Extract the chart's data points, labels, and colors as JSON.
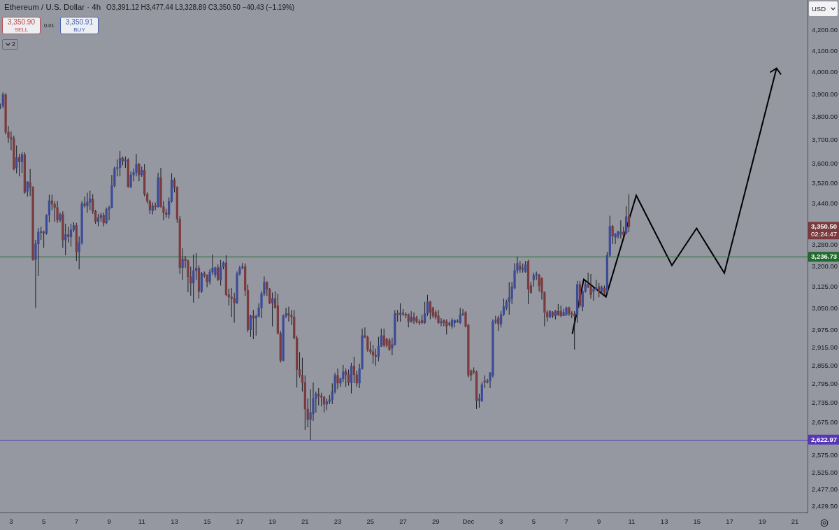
{
  "chart_data": {
    "type": "candlestick",
    "title": "Ethereum / U.S. Dollar · 4h",
    "subtitle": "O3,391.12 H3,477.44 L3,328.89 C3,350.50 −40.43 (−1.19%)",
    "x": [
      "--11-02T08:00",
      "--11-02T12:00",
      "--11-02T16:00",
      "--11-02T20:00",
      "--11-03T00:00",
      "--11-03T04:00",
      "--11-03T08:00",
      "--11-03T12:00",
      "--11-03T16:00",
      "--11-03T20:00",
      "--11-04T00:00",
      "--11-04T04:00",
      "--11-04T08:00",
      "--11-04T12:00",
      "--11-04T16:00",
      "--11-04T20:00",
      "--11-05T00:00",
      "--11-05T04:00",
      "--11-05T08:00",
      "--11-05T12:00",
      "--11-05T16:00",
      "--11-05T20:00",
      "--11-06T00:00",
      "--11-06T04:00",
      "--11-06T08:00",
      "--11-06T12:00",
      "--11-06T16:00",
      "--11-06T20:00",
      "--11-07T00:00",
      "--11-07T04:00",
      "--11-07T08:00",
      "--11-07T12:00",
      "--11-07T16:00",
      "--11-07T20:00",
      "--11-08T00:00",
      "--11-08T04:00",
      "--11-08T08:00",
      "--11-08T12:00",
      "--11-08T16:00",
      "--11-08T20:00",
      "--11-09T00:00",
      "--11-09T04:00",
      "--11-09T08:00",
      "--11-09T12:00",
      "--11-09T16:00",
      "--11-09T20:00",
      "--11-10T00:00",
      "--11-10T04:00",
      "--11-10T08:00",
      "--11-10T12:00",
      "--11-10T16:00",
      "--11-10T20:00",
      "--11-11T00:00",
      "--11-11T04:00",
      "--11-11T08:00",
      "--11-11T12:00",
      "--11-11T16:00",
      "--11-11T20:00",
      "--11-12T00:00",
      "--11-12T04:00",
      "--11-12T08:00",
      "--11-12T12:00",
      "--11-12T16:00",
      "--11-12T20:00",
      "--11-13T00:00",
      "--11-13T04:00",
      "--11-13T08:00",
      "--11-13T12:00",
      "--11-13T16:00",
      "--11-13T20:00",
      "--11-14T00:00",
      "--11-14T04:00",
      "--11-14T08:00",
      "--11-14T12:00",
      "--11-14T16:00",
      "--11-14T20:00",
      "--11-15T00:00",
      "--11-15T04:00",
      "--11-15T08:00",
      "--11-15T12:00",
      "--11-15T16:00",
      "--11-15T20:00",
      "--11-16T00:00",
      "--11-16T04:00",
      "--11-16T08:00",
      "--11-16T12:00",
      "--11-16T16:00",
      "--11-16T20:00",
      "--11-17T00:00",
      "--11-17T04:00",
      "--11-17T08:00",
      "--11-17T12:00",
      "--11-17T16:00",
      "--11-17T20:00",
      "--11-18T00:00",
      "--11-18T04:00",
      "--11-18T08:00",
      "--11-18T12:00",
      "--11-18T16:00",
      "--11-18T20:00",
      "--11-19T00:00",
      "--11-19T04:00",
      "--11-19T08:00",
      "--11-19T12:00",
      "--11-19T16:00",
      "--11-19T20:00",
      "--11-20T00:00",
      "--11-20T04:00",
      "--11-20T08:00",
      "--11-20T12:00",
      "--11-20T16:00",
      "--11-20T20:00",
      "--11-21T00:00",
      "--11-21T04:00",
      "--11-21T08:00",
      "--11-21T12:00",
      "--11-21T16:00",
      "--11-21T20:00",
      "--11-22T00:00",
      "--11-22T04:00",
      "--11-22T08:00",
      "--11-22T12:00",
      "--11-22T16:00",
      "--11-22T20:00",
      "--11-23T00:00",
      "--11-23T04:00",
      "--11-23T08:00",
      "--11-23T12:00",
      "--11-23T16:00",
      "--11-23T20:00",
      "--11-24T00:00",
      "--11-24T04:00",
      "--11-24T08:00",
      "--11-24T12:00",
      "--11-24T16:00",
      "--11-24T20:00",
      "--11-25T00:00",
      "--11-25T04:00",
      "--11-25T08:00",
      "--11-25T12:00",
      "--11-25T16:00",
      "--11-25T20:00",
      "--11-26T00:00",
      "--11-26T04:00",
      "--11-26T08:00",
      "--11-26T12:00",
      "--11-26T16:00",
      "--11-26T20:00",
      "--11-27T00:00",
      "--11-27T04:00",
      "--11-27T08:00",
      "--11-27T12:00",
      "--11-27T16:00",
      "--11-27T20:00",
      "--11-28T00:00",
      "--11-28T04:00",
      "--11-28T08:00",
      "--11-28T12:00",
      "--11-28T16:00",
      "--11-28T20:00",
      "--11-29T00:00",
      "--11-29T04:00",
      "--11-29T08:00",
      "--11-29T12:00",
      "--11-29T16:00",
      "--11-29T20:00",
      "--11-30T00:00",
      "--11-30T04:00",
      "--11-30T08:00",
      "--11-30T12:00",
      "--11-30T16:00",
      "--11-30T20:00",
      "--12-01T00:00",
      "--12-01T04:00",
      "--12-01T08:00",
      "--12-01T12:00",
      "--12-01T16:00",
      "--12-01T20:00",
      "--12-02T00:00",
      "--12-02T04:00",
      "--12-02T08:00",
      "--12-02T12:00",
      "--12-02T16:00",
      "--12-02T20:00",
      "--12-03T00:00",
      "--12-03T04:00",
      "--12-03T08:00",
      "--12-03T12:00",
      "--12-03T16:00",
      "--12-03T20:00",
      "--12-04T00:00",
      "--12-04T04:00",
      "--12-04T08:00",
      "--12-04T12:00",
      "--12-04T16:00",
      "--12-04T20:00",
      "--12-05T00:00",
      "--12-05T04:00",
      "--12-05T08:00",
      "--12-05T12:00",
      "--12-05T16:00",
      "--12-05T20:00",
      "--12-06T00:00",
      "--12-06T04:00",
      "--12-06T08:00",
      "--12-06T12:00",
      "--12-06T16:00",
      "--12-06T20:00",
      "--12-07T00:00",
      "--12-07T04:00",
      "--12-07T08:00",
      "--12-07T12:00",
      "--12-07T16:00",
      "--12-07T20:00",
      "--12-08T00:00",
      "--12-08T04:00",
      "--12-08T08:00",
      "--12-08T12:00",
      "--12-08T16:00",
      "--12-08T20:00",
      "--12-09T00:00",
      "--12-09T04:00",
      "--12-09T08:00",
      "--12-09T12:00",
      "--12-09T16:00",
      "--12-09T20:00",
      "--12-10T00:00",
      "--12-10T04:00",
      "--12-10T08:00",
      "--12-10T12:00",
      "--12-10T16:00",
      "--12-10T20:00"
    ],
    "ohlc": [
      [
        3845,
        3860,
        3835,
        3850
      ],
      [
        3850,
        3910,
        3840,
        3900
      ],
      [
        3900,
        3905,
        3725,
        3735
      ],
      [
        3735,
        3762,
        3690,
        3712
      ],
      [
        3712,
        3738,
        3658,
        3705
      ],
      [
        3708,
        3720,
        3575,
        3580
      ],
      [
        3585,
        3678,
        3562,
        3628
      ],
      [
        3628,
        3643,
        3550,
        3610
      ],
      [
        3610,
        3650,
        3565,
        3640
      ],
      [
        3640,
        3650,
        3480,
        3485
      ],
      [
        3490,
        3530,
        3468,
        3528
      ],
      [
        3525,
        3580,
        3471,
        3505
      ],
      [
        3505,
        3510,
        3222,
        3226
      ],
      [
        3226,
        3300,
        3052,
        3285
      ],
      [
        3285,
        3345,
        3165,
        3330
      ],
      [
        3328,
        3350,
        3300,
        3332
      ],
      [
        3330,
        3335,
        3270,
        3325
      ],
      [
        3325,
        3398,
        3320,
        3395
      ],
      [
        3395,
        3476,
        3367,
        3452
      ],
      [
        3452,
        3476,
        3415,
        3438
      ],
      [
        3438,
        3450,
        3370,
        3425
      ],
      [
        3425,
        3450,
        3365,
        3376
      ],
      [
        3376,
        3405,
        3368,
        3398
      ],
      [
        3398,
        3410,
        3270,
        3300
      ],
      [
        3300,
        3362,
        3242,
        3320
      ],
      [
        3320,
        3350,
        3290,
        3312
      ],
      [
        3312,
        3362,
        3275,
        3338
      ],
      [
        3338,
        3368,
        3330,
        3355
      ],
      [
        3355,
        3365,
        3221,
        3255
      ],
      [
        3255,
        3313,
        3190,
        3290
      ],
      [
        3290,
        3450,
        3282,
        3440
      ],
      [
        3440,
        3468,
        3425,
        3432
      ],
      [
        3432,
        3484,
        3405,
        3447
      ],
      [
        3446,
        3492,
        3415,
        3460
      ],
      [
        3458,
        3478,
        3400,
        3410
      ],
      [
        3410,
        3416,
        3362,
        3370
      ],
      [
        3370,
        3400,
        3352,
        3385
      ],
      [
        3385,
        3405,
        3370,
        3395
      ],
      [
        3395,
        3405,
        3352,
        3365
      ],
      [
        3365,
        3425,
        3360,
        3418
      ],
      [
        3418,
        3432,
        3375,
        3425
      ],
      [
        3425,
        3556,
        3422,
        3512
      ],
      [
        3512,
        3590,
        3505,
        3582
      ],
      [
        3582,
        3620,
        3550,
        3586
      ],
      [
        3586,
        3655,
        3550,
        3625
      ],
      [
        3625,
        3632,
        3595,
        3612
      ],
      [
        3612,
        3632,
        3585,
        3618
      ],
      [
        3618,
        3625,
        3504,
        3508
      ],
      [
        3508,
        3570,
        3502,
        3556
      ],
      [
        3556,
        3582,
        3530,
        3565
      ],
      [
        3565,
        3643,
        3550,
        3600
      ],
      [
        3600,
        3605,
        3530,
        3556
      ],
      [
        3556,
        3590,
        3548,
        3575
      ],
      [
        3575,
        3600,
        3470,
        3478
      ],
      [
        3478,
        3485,
        3440,
        3450
      ],
      [
        3450,
        3456,
        3400,
        3416
      ],
      [
        3412,
        3445,
        3398,
        3432
      ],
      [
        3432,
        3445,
        3415,
        3428
      ],
      [
        3428,
        3565,
        3425,
        3545
      ],
      [
        3545,
        3585,
        3425,
        3428
      ],
      [
        3428,
        3450,
        3375,
        3405
      ],
      [
        3405,
        3420,
        3385,
        3398
      ],
      [
        3398,
        3465,
        3382,
        3450
      ],
      [
        3450,
        3563,
        3445,
        3535
      ],
      [
        3535,
        3545,
        3485,
        3505
      ],
      [
        3505,
        3510,
        3365,
        3380
      ],
      [
        3380,
        3392,
        3173,
        3196
      ],
      [
        3196,
        3268,
        3152,
        3229
      ],
      [
        3229,
        3240,
        3196,
        3222
      ],
      [
        3222,
        3226,
        3107,
        3163
      ],
      [
        3163,
        3200,
        3095,
        3140
      ],
      [
        3140,
        3245,
        3070,
        3185
      ],
      [
        3185,
        3250,
        3152,
        3195
      ],
      [
        3195,
        3205,
        3085,
        3110
      ],
      [
        3110,
        3180,
        3105,
        3175
      ],
      [
        3175,
        3182,
        3160,
        3168
      ],
      [
        3168,
        3172,
        3125,
        3145
      ],
      [
        3145,
        3190,
        3135,
        3180
      ],
      [
        3180,
        3245,
        3170,
        3195
      ],
      [
        3170,
        3200,
        3160,
        3196
      ],
      [
        3196,
        3208,
        3148,
        3152
      ],
      [
        3152,
        3225,
        3131,
        3199
      ],
      [
        3199,
        3220,
        3190,
        3214
      ],
      [
        3214,
        3242,
        3094,
        3098
      ],
      [
        3098,
        3120,
        3060,
        3090
      ],
      [
        3090,
        3122,
        3020,
        3085
      ],
      [
        3085,
        3105,
        3000,
        3070
      ],
      [
        3070,
        3182,
        3065,
        3173
      ],
      [
        3173,
        3203,
        3168,
        3195
      ],
      [
        3195,
        3213,
        3190,
        3200
      ],
      [
        3200,
        3212,
        3094,
        3114
      ],
      [
        3114,
        3135,
        2968,
        2976
      ],
      [
        2976,
        3028,
        2952,
        3024
      ],
      [
        3024,
        3045,
        2944,
        3016
      ],
      [
        3016,
        3028,
        2956,
        3022
      ],
      [
        3022,
        3068,
        3020,
        3052
      ],
      [
        3052,
        3110,
        3016,
        3102
      ],
      [
        3102,
        3164,
        3094,
        3143
      ],
      [
        3143,
        3147,
        3094,
        3118
      ],
      [
        3118,
        3122,
        3065,
        3069
      ],
      [
        3069,
        3106,
        2988,
        3085
      ],
      [
        3085,
        3110,
        3050,
        3052
      ],
      [
        3060,
        3102,
        2960,
        2964
      ],
      [
        2964,
        2972,
        2866,
        2873
      ],
      [
        2873,
        3028,
        2870,
        3024
      ],
      [
        3024,
        3052,
        3016,
        3032
      ],
      [
        3032,
        3056,
        3004,
        3026
      ],
      [
        3026,
        3044,
        2992,
        3020
      ],
      [
        3020,
        3044,
        2944,
        2948
      ],
      [
        2948,
        2956,
        2785,
        2843
      ],
      [
        2843,
        2900,
        2817,
        2824
      ],
      [
        2824,
        2882,
        2772,
        2801
      ],
      [
        2801,
        2824,
        2652,
        2717
      ],
      [
        2717,
        2750,
        2660,
        2684
      ],
      [
        2684,
        2779,
        2622,
        2706
      ],
      [
        2702,
        2801,
        2680,
        2750
      ],
      [
        2750,
        2772,
        2706,
        2764
      ],
      [
        2764,
        2783,
        2728,
        2758
      ],
      [
        2758,
        2768,
        2725,
        2754
      ],
      [
        2754,
        2758,
        2706,
        2732
      ],
      [
        2732,
        2750,
        2713,
        2740
      ],
      [
        2740,
        2761,
        2732,
        2746
      ],
      [
        2746,
        2798,
        2732,
        2772
      ],
      [
        2772,
        2832,
        2765,
        2824
      ],
      [
        2824,
        2846,
        2780,
        2799
      ],
      [
        2799,
        2817,
        2787,
        2813
      ],
      [
        2813,
        2858,
        2802,
        2836
      ],
      [
        2836,
        2846,
        2787,
        2826
      ],
      [
        2826,
        2843,
        2791,
        2800
      ],
      [
        2800,
        2865,
        2766,
        2854
      ],
      [
        2854,
        2885,
        2799,
        2826
      ],
      [
        2826,
        2839,
        2787,
        2799
      ],
      [
        2799,
        2862,
        2783,
        2846
      ],
      [
        2846,
        2980,
        2843,
        2956
      ],
      [
        2956,
        2984,
        2948,
        2950
      ],
      [
        2950,
        2956,
        2902,
        2909
      ],
      [
        2909,
        2936,
        2893,
        2902
      ],
      [
        2902,
        2924,
        2862,
        2890
      ],
      [
        2890,
        2912,
        2855,
        2886
      ],
      [
        2886,
        2952,
        2870,
        2920
      ],
      [
        2920,
        2980,
        2918,
        2956
      ],
      [
        2956,
        2980,
        2918,
        2924
      ],
      [
        2944,
        2948,
        2916,
        2924
      ],
      [
        2940,
        2948,
        2905,
        2909
      ],
      [
        2914,
        2948,
        2890,
        2926
      ],
      [
        2926,
        3044,
        2922,
        3032
      ],
      [
        3032,
        3044,
        3004,
        3028
      ],
      [
        3028,
        3068,
        3004,
        3034
      ],
      [
        3034,
        3048,
        3024,
        3030
      ],
      [
        3030,
        3036,
        3016,
        3026
      ],
      [
        3028,
        3032,
        2984,
        3004
      ],
      [
        3004,
        3040,
        3000,
        3020
      ],
      [
        3020,
        3036,
        2996,
        3008
      ],
      [
        3016,
        3024,
        2998,
        3004
      ],
      [
        3004,
        3012,
        2992,
        3000
      ],
      [
        3008,
        3028,
        2996,
        3000
      ],
      [
        3000,
        3073,
        2996,
        3032
      ],
      [
        3032,
        3098,
        3024,
        3073
      ],
      [
        3073,
        3077,
        3012,
        3036
      ],
      [
        3052,
        3056,
        3016,
        3024
      ],
      [
        3036,
        3044,
        3012,
        3020
      ],
      [
        3024,
        3044,
        2996,
        3000
      ],
      [
        3000,
        3016,
        2988,
        3004
      ],
      [
        3008,
        3012,
        2988,
        3000
      ],
      [
        3004,
        3012,
        2960,
        2988
      ],
      [
        2998,
        3004,
        2988,
        2994
      ],
      [
        2988,
        3016,
        2980,
        3008
      ],
      [
        3000,
        3012,
        2984,
        3008
      ],
      [
        3006,
        3012,
        3000,
        3004
      ],
      [
        3000,
        3052,
        2996,
        3028
      ],
      [
        3028,
        3048,
        3024,
        3032
      ],
      [
        3036,
        3040,
        2984,
        2988
      ],
      [
        2992,
        2996,
        2817,
        2824
      ],
      [
        2839,
        2843,
        2806,
        2824
      ],
      [
        2839,
        2850,
        2828,
        2835
      ],
      [
        2835,
        2839,
        2717,
        2743
      ],
      [
        2743,
        2765,
        2721,
        2750
      ],
      [
        2743,
        2802,
        2739,
        2794
      ],
      [
        2806,
        2824,
        2783,
        2802
      ],
      [
        2802,
        2813,
        2798,
        2806
      ],
      [
        2806,
        2835,
        2783,
        2832
      ],
      [
        2824,
        3012,
        2817,
        3004
      ],
      [
        3004,
        3024,
        2996,
        3008
      ],
      [
        3016,
        3024,
        2972,
        2996
      ],
      [
        2996,
        3040,
        2984,
        3028
      ],
      [
        3028,
        3085,
        3024,
        3056
      ],
      [
        3052,
        3081,
        3044,
        3073
      ],
      [
        3073,
        3144,
        3028,
        3089
      ],
      [
        3085,
        3144,
        3065,
        3127
      ],
      [
        3122,
        3212,
        3118,
        3186
      ],
      [
        3186,
        3237,
        3174,
        3212
      ],
      [
        3203,
        3220,
        3178,
        3190
      ],
      [
        3190,
        3212,
        3178,
        3195
      ],
      [
        3182,
        3220,
        3178,
        3207
      ],
      [
        3220,
        3225,
        3065,
        3118
      ],
      [
        3131,
        3144,
        3102,
        3106
      ],
      [
        3152,
        3178,
        3127,
        3169
      ],
      [
        3169,
        3182,
        3152,
        3173
      ],
      [
        3169,
        3173,
        3110,
        3131
      ],
      [
        3157,
        3161,
        3081,
        3106
      ],
      [
        3106,
        3110,
        2988,
        3036
      ],
      [
        3036,
        3044,
        3004,
        3020
      ],
      [
        3020,
        3044,
        3016,
        3040
      ],
      [
        3036,
        3040,
        3016,
        3024
      ],
      [
        3024,
        3044,
        3012,
        3040
      ],
      [
        3040,
        3065,
        3024,
        3028
      ],
      [
        3040,
        3060,
        3020,
        3024
      ],
      [
        3024,
        3048,
        3024,
        3036
      ],
      [
        3028,
        3056,
        3024,
        3052
      ],
      [
        3052,
        3056,
        3024,
        3032
      ],
      [
        3032,
        3040,
        3016,
        3028
      ],
      [
        3028,
        3040,
        2909,
        3024
      ],
      [
        3028,
        3148,
        3000,
        3135
      ],
      [
        3135,
        3148,
        3052,
        3061
      ],
      [
        3056,
        3114,
        3040,
        3110
      ],
      [
        3110,
        3144,
        3106,
        3135
      ],
      [
        3135,
        3178,
        3122,
        3127
      ],
      [
        3127,
        3173,
        3085,
        3098
      ],
      [
        3110,
        3127,
        3077,
        3118
      ],
      [
        3118,
        3152,
        3114,
        3122
      ],
      [
        3127,
        3140,
        3089,
        3110
      ],
      [
        3110,
        3131,
        3102,
        3125
      ],
      [
        3122,
        3131,
        3098,
        3104
      ],
      [
        3110,
        3255,
        3102,
        3242
      ],
      [
        3242,
        3393,
        3237,
        3352
      ],
      [
        3352,
        3357,
        3284,
        3314
      ],
      [
        3310,
        3326,
        3284,
        3322
      ],
      [
        3314,
        3335,
        3305,
        3331
      ],
      [
        3322,
        3375,
        3305,
        3330
      ],
      [
        3330,
        3350,
        3305,
        3320
      ],
      [
        3326,
        3430,
        3322,
        3389
      ],
      [
        3391.12,
        3477.44,
        3328.89,
        3350.5
      ]
    ],
    "colors": [
      "#3c4b98",
      "#3c4b98",
      "#7a3a3e",
      "#7a3a3e",
      "#7a3a3e",
      "#7a3a3e",
      "#3c4b98",
      "#7a3a3e",
      "#3c4b98",
      "#7a3a3e",
      "#3c4b98",
      "#7a3a3e",
      "#7a3a3e",
      "#3c4b98",
      "#3c4b98",
      "#3c4b98",
      "#7a3a3e",
      "#3c4b98",
      "#3c4b98",
      "#7a3a3e",
      "#7a3a3e",
      "#7a3a3e",
      "#3c4b98",
      "#7a3a3e",
      "#3c4b98",
      "#7a3a3e",
      "#3c4b98",
      "#3c4b98",
      "#7a3a3e",
      "#3c4b98",
      "#3c4b98",
      "#7a3a3e",
      "#3c4b98",
      "#3c4b98",
      "#7a3a3e",
      "#7a3a3e",
      "#3c4b98",
      "#3c4b98",
      "#7a3a3e",
      "#3c4b98",
      "#3c4b98",
      "#3c4b98",
      "#3c4b98",
      "#3c4b98",
      "#3c4b98",
      "#7a3a3e",
      "#3c4b98",
      "#7a3a3e",
      "#3c4b98",
      "#3c4b98",
      "#3c4b98",
      "#7a3a3e",
      "#3c4b98",
      "#7a3a3e",
      "#7a3a3e",
      "#7a3a3e",
      "#3c4b98",
      "#7a3a3e",
      "#3c4b98",
      "#7a3a3e",
      "#7a3a3e",
      "#7a3a3e",
      "#3c4b98",
      "#3c4b98",
      "#7a3a3e",
      "#7a3a3e",
      "#7a3a3e",
      "#3c4b98",
      "#7a3a3e",
      "#7a3a3e",
      "#7a3a3e",
      "#3c4b98",
      "#3c4b98",
      "#7a3a3e",
      "#3c4b98",
      "#7a3a3e",
      "#7a3a3e",
      "#3c4b98",
      "#3c4b98",
      "#3c4b98",
      "#7a3a3e",
      "#3c4b98",
      "#3c4b98",
      "#7a3a3e",
      "#7a3a3e",
      "#7a3a3e",
      "#7a3a3e",
      "#3c4b98",
      "#3c4b98",
      "#3c4b98",
      "#7a3a3e",
      "#7a3a3e",
      "#3c4b98",
      "#7a3a3e",
      "#3c4b98",
      "#3c4b98",
      "#3c4b98",
      "#3c4b98",
      "#7a3a3e",
      "#7a3a3e",
      "#3c4b98",
      "#7a3a3e",
      "#7a3a3e",
      "#7a3a3e",
      "#3c4b98",
      "#3c4b98",
      "#7a3a3e",
      "#7a3a3e",
      "#7a3a3e",
      "#7a3a3e",
      "#7a3a3e",
      "#7a3a3e",
      "#7a3a3e",
      "#7a3a3e",
      "#3c4b98",
      "#3c4b98",
      "#3c4b98",
      "#7a3a3e",
      "#7a3a3e",
      "#7a3a3e",
      "#3c4b98",
      "#3c4b98",
      "#3c4b98",
      "#3c4b98",
      "#7a3a3e",
      "#3c4b98",
      "#3c4b98",
      "#7a3a3e",
      "#7a3a3e",
      "#3c4b98",
      "#7a3a3e",
      "#7a3a3e",
      "#3c4b98",
      "#3c4b98",
      "#7a3a3e",
      "#7a3a3e",
      "#7a3a3e",
      "#7a3a3e",
      "#7a3a3e",
      "#3c4b98",
      "#3c4b98",
      "#7a3a3e",
      "#7a3a3e",
      "#7a3a3e",
      "#3c4b98",
      "#3c4b98",
      "#7a3a3e",
      "#3c4b98",
      "#7a3a3e",
      "#7a3a3e",
      "#7a3a3e",
      "#3c4b98",
      "#7a3a3e",
      "#7a3a3e",
      "#7a3a3e",
      "#7a3a3e",
      "#3c4b98",
      "#3c4b98",
      "#7a3a3e",
      "#7a3a3e",
      "#7a3a3e",
      "#7a3a3e",
      "#3c4b98",
      "#7a3a3e",
      "#7a3a3e",
      "#7a3a3e",
      "#3c4b98",
      "#3c4b98",
      "#7a3a3e",
      "#3c4b98",
      "#3c4b98",
      "#7a3a3e",
      "#7a3a3e",
      "#7a3a3e",
      "#7a3a3e",
      "#7a3a3e",
      "#3c4b98",
      "#3c4b98",
      "#7a3a3e",
      "#3c4b98",
      "#3c4b98",
      "#3c4b98",
      "#3c4b98",
      "#7a3a3e",
      "#3c4b98",
      "#3c4b98",
      "#3c4b98",
      "#3c4b98",
      "#3c4b98",
      "#3c4b98",
      "#3c4b98",
      "#7a3a3e",
      "#3c4b98",
      "#3c4b98",
      "#7a3a3e",
      "#7a3a3e",
      "#3c4b98",
      "#3c4b98",
      "#7a3a3e",
      "#7a3a3e",
      "#7a3a3e",
      "#7a3a3e",
      "#3c4b98",
      "#7a3a3e",
      "#3c4b98",
      "#7a3a3e",
      "#7a3a3e",
      "#3c4b98",
      "#3c4b98",
      "#7a3a3e",
      "#7a3a3e",
      "#7a3a3e",
      "#3c4b98",
      "#7a3a3e",
      "#3c4b98",
      "#3c4b98",
      "#7a3a3e",
      "#7a3a3e",
      "#3c4b98",
      "#3c4b98",
      "#7a3a3e",
      "#3c4b98",
      "#7a3a3e",
      "#3c4b98",
      "#3c4b98",
      "#7a3a3e",
      "#3c4b98",
      "#3c4b98",
      "#3c4b98",
      "#7a3a3e",
      "#3c4b98",
      "#7a3a3e"
    ],
    "log": true,
    "xlim": [
      "--11-02T07:40",
      "--12-21T18:30"
    ],
    "ylim": [
      2412,
      4348
    ],
    "xticks": [
      {
        "value": "--11-03",
        "label": "3"
      },
      {
        "value": "--11-05",
        "label": "5"
      },
      {
        "value": "--11-07",
        "label": "7"
      },
      {
        "value": "--11-09",
        "label": "9"
      },
      {
        "value": "--11-11",
        "label": "11"
      },
      {
        "value": "--11-13",
        "label": "13"
      },
      {
        "value": "--11-15",
        "label": "15"
      },
      {
        "value": "--11-17",
        "label": "17"
      },
      {
        "value": "--11-19",
        "label": "19"
      },
      {
        "value": "--11-21",
        "label": "21"
      },
      {
        "value": "--11-23",
        "label": "23"
      },
      {
        "value": "--11-25",
        "label": "25"
      },
      {
        "value": "--11-27",
        "label": "27"
      },
      {
        "value": "--11-29",
        "label": "29"
      },
      {
        "value": "--12-01",
        "label": "Dec"
      },
      {
        "value": "--12-03",
        "label": "3"
      },
      {
        "value": "--12-05",
        "label": "5"
      },
      {
        "value": "--12-07",
        "label": "7"
      },
      {
        "value": "--12-09",
        "label": "9"
      },
      {
        "value": "--12-11",
        "label": "11"
      },
      {
        "value": "--12-13",
        "label": "13"
      },
      {
        "value": "--12-15",
        "label": "15"
      },
      {
        "value": "--12-17",
        "label": "17"
      },
      {
        "value": "--12-19",
        "label": "19"
      },
      {
        "value": "--12-21",
        "label": "21"
      }
    ],
    "yticks": [
      {
        "value": 2429.5,
        "label": "2,429.50"
      },
      {
        "value": 2477,
        "label": "2,477.00"
      },
      {
        "value": 2525,
        "label": "2,525.00"
      },
      {
        "value": 2575,
        "label": "2,575.00"
      },
      {
        "value": 2675,
        "label": "2,675.00"
      },
      {
        "value": 2735,
        "label": "2,735.00"
      },
      {
        "value": 2795,
        "label": "2,795.00"
      },
      {
        "value": 2855,
        "label": "2,855.00"
      },
      {
        "value": 2915,
        "label": "2,915.00"
      },
      {
        "value": 2975,
        "label": "2,975.00"
      },
      {
        "value": 3050,
        "label": "3,050.00"
      },
      {
        "value": 3125,
        "label": "3,125.00"
      },
      {
        "value": 3200,
        "label": "3,200.00"
      },
      {
        "value": 3280,
        "label": "3,280.00"
      },
      {
        "value": 3440,
        "label": "3,440.00"
      },
      {
        "value": 3520,
        "label": "3,520.00"
      },
      {
        "value": 3600,
        "label": "3,600.00"
      },
      {
        "value": 3700,
        "label": "3,700.00"
      },
      {
        "value": 3800,
        "label": "3,800.00"
      },
      {
        "value": 3900,
        "label": "3,900.00"
      },
      {
        "value": 4000,
        "label": "4,000.00"
      },
      {
        "value": 4100,
        "label": "4,100.00"
      },
      {
        "value": 4200,
        "label": "4,200.00"
      }
    ],
    "ref_lines": [
      {
        "axis": "y",
        "value": 3236.73,
        "label": "3,236.73",
        "color": "#1f6a2c"
      },
      {
        "axis": "y",
        "value": 2622.97,
        "label": "2,622.97",
        "color": "#5537b8"
      }
    ],
    "annotations": [
      "3,350.50",
      "02:24:47",
      "3,350.90",
      "SELL",
      "0.01",
      "3,350.91",
      "BUY",
      "2",
      "USD"
    ]
  }
}
